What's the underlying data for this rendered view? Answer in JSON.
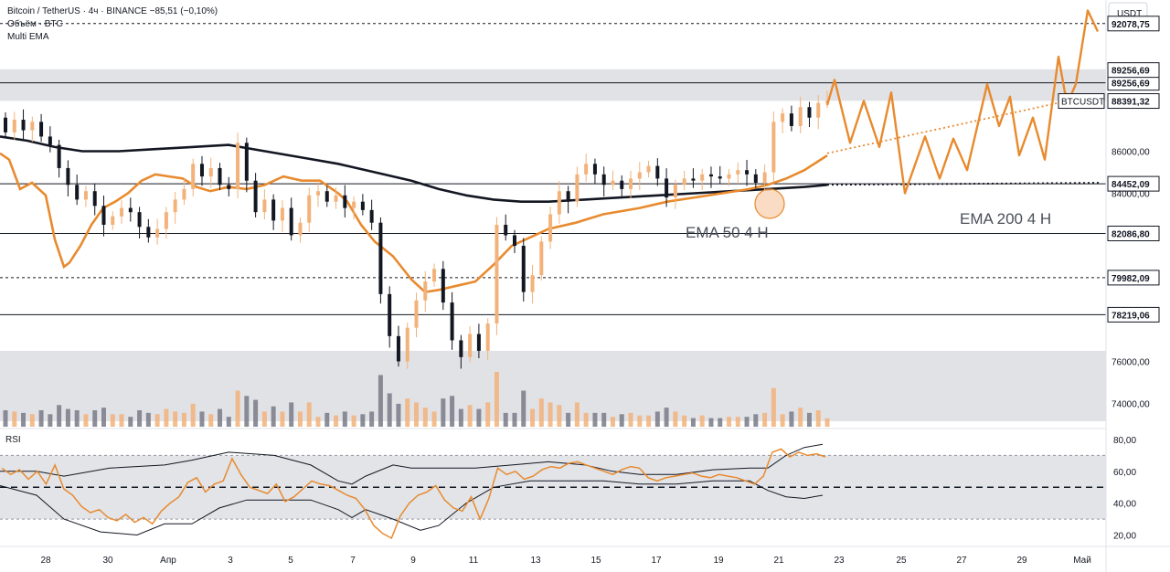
{
  "legend": {
    "line1": "Bitcoin / TetherUS · 4ч · BINANCE  −85,51 (−0,10%)",
    "line2": "Объём · BTC",
    "line3": "Multi EMA"
  },
  "price_axis_title": "USDT",
  "rsi_label": "RSI",
  "colors": {
    "up": "#f2b27a",
    "down": "#131722",
    "ema50": "#e88a2e",
    "ema200": "#131722",
    "forecast": "#e88a2e",
    "zone": "#d6d8de"
  },
  "chart_data": {
    "type": "candlestick",
    "x_ticks": [
      "28",
      "30",
      "Апр",
      "3",
      "5",
      "7",
      "9",
      "11",
      "13",
      "15",
      "17",
      "19",
      "21",
      "23",
      "25",
      "27",
      "29",
      "Май"
    ],
    "y_ticks": [
      "86000,00",
      "84000,00",
      "76000,00",
      "74000,00"
    ],
    "price_range": [
      72800,
      93200
    ],
    "levels": [
      {
        "price": 89256.69,
        "label": "89256,69",
        "style": "solid"
      },
      {
        "price": 84452.09,
        "label": "84452,09",
        "style": "solid"
      },
      {
        "price": 82086.8,
        "label": "82086,80",
        "style": "solid"
      },
      {
        "price": 79982.09,
        "label": "79982,09",
        "style": "dashed"
      },
      {
        "price": 78219.06,
        "label": "78219,06",
        "style": "solid"
      },
      {
        "price": 92078.75,
        "label": "92078,75",
        "style": "dashed"
      }
    ],
    "zones": [
      [
        88400,
        89900
      ],
      [
        73150,
        76500
      ]
    ],
    "current_price": {
      "label": "BTCUSDT",
      "value": "88391,32",
      "price": 88391.32
    },
    "ema200_label": "EMA 200 4 H",
    "ema50_label": "EMA 50 4 H",
    "candles": [
      {
        "o": 87600,
        "c": 86900
      },
      {
        "o": 86900,
        "c": 87500
      },
      {
        "o": 87500,
        "c": 87000
      },
      {
        "o": 87000,
        "c": 87400
      },
      {
        "o": 87400,
        "c": 86700
      },
      {
        "o": 86700,
        "c": 86300
      },
      {
        "o": 86300,
        "c": 85200
      },
      {
        "o": 85200,
        "c": 84400
      },
      {
        "o": 84400,
        "c": 83700
      },
      {
        "o": 83700,
        "c": 84100
      },
      {
        "o": 84100,
        "c": 83400
      },
      {
        "o": 83400,
        "c": 82500
      },
      {
        "o": 82500,
        "c": 82900
      },
      {
        "o": 82900,
        "c": 83300
      },
      {
        "o": 83300,
        "c": 83100
      },
      {
        "o": 83100,
        "c": 82400
      },
      {
        "o": 82400,
        "c": 81900
      },
      {
        "o": 81900,
        "c": 82300
      },
      {
        "o": 82300,
        "c": 83100
      },
      {
        "o": 83100,
        "c": 83700
      },
      {
        "o": 83700,
        "c": 84200
      },
      {
        "o": 84200,
        "c": 85400
      },
      {
        "o": 85400,
        "c": 84800
      },
      {
        "o": 84800,
        "c": 85200
      },
      {
        "o": 85200,
        "c": 84400
      },
      {
        "o": 84400,
        "c": 84200
      },
      {
        "o": 84200,
        "c": 86400
      },
      {
        "o": 86400,
        "c": 84600
      },
      {
        "o": 84600,
        "c": 83100
      },
      {
        "o": 83100,
        "c": 83700
      },
      {
        "o": 83700,
        "c": 82700
      },
      {
        "o": 82700,
        "c": 83300
      },
      {
        "o": 83300,
        "c": 82000
      },
      {
        "o": 82000,
        "c": 82600
      },
      {
        "o": 82600,
        "c": 83900
      },
      {
        "o": 83900,
        "c": 84100
      },
      {
        "o": 84100,
        "c": 83600
      },
      {
        "o": 83600,
        "c": 83900
      },
      {
        "o": 83900,
        "c": 83300
      },
      {
        "o": 83300,
        "c": 83600
      },
      {
        "o": 83600,
        "c": 83200
      },
      {
        "o": 83200,
        "c": 82600
      },
      {
        "o": 82600,
        "c": 79200
      },
      {
        "o": 79200,
        "c": 77200
      },
      {
        "o": 77200,
        "c": 76000
      },
      {
        "o": 76000,
        "c": 77600
      },
      {
        "o": 77600,
        "c": 78900
      },
      {
        "o": 78900,
        "c": 79800
      },
      {
        "o": 79800,
        "c": 80400
      },
      {
        "o": 80400,
        "c": 78800
      },
      {
        "o": 78800,
        "c": 77000
      },
      {
        "o": 77000,
        "c": 76200
      },
      {
        "o": 76200,
        "c": 77300
      },
      {
        "o": 77300,
        "c": 76500
      },
      {
        "o": 76500,
        "c": 77800
      },
      {
        "o": 77800,
        "c": 82500
      },
      {
        "o": 82500,
        "c": 82000
      },
      {
        "o": 82000,
        "c": 81500
      },
      {
        "o": 81500,
        "c": 79300
      },
      {
        "o": 79300,
        "c": 80100
      },
      {
        "o": 80100,
        "c": 81700
      },
      {
        "o": 81700,
        "c": 83000
      },
      {
        "o": 83000,
        "c": 84100
      },
      {
        "o": 84100,
        "c": 83600
      },
      {
        "o": 83600,
        "c": 84900
      },
      {
        "o": 84900,
        "c": 85400
      },
      {
        "o": 85400,
        "c": 84900
      },
      {
        "o": 84900,
        "c": 84400
      },
      {
        "o": 84400,
        "c": 84600
      },
      {
        "o": 84600,
        "c": 84200
      },
      {
        "o": 84200,
        "c": 84700
      },
      {
        "o": 84700,
        "c": 85000
      },
      {
        "o": 85000,
        "c": 85300
      },
      {
        "o": 85300,
        "c": 84700
      },
      {
        "o": 84700,
        "c": 83800
      },
      {
        "o": 83800,
        "c": 84400
      },
      {
        "o": 84400,
        "c": 84700
      },
      {
        "o": 84700,
        "c": 84600
      },
      {
        "o": 84600,
        "c": 84900
      },
      {
        "o": 84900,
        "c": 84800
      },
      {
        "o": 84800,
        "c": 84700
      },
      {
        "o": 84700,
        "c": 84900
      },
      {
        "o": 84900,
        "c": 85100
      },
      {
        "o": 85100,
        "c": 84900
      },
      {
        "o": 84900,
        "c": 84500
      },
      {
        "o": 84500,
        "c": 85000
      },
      {
        "o": 85000,
        "c": 87400
      },
      {
        "o": 87400,
        "c": 87800
      },
      {
        "o": 87800,
        "c": 87200
      },
      {
        "o": 87200,
        "c": 88100
      },
      {
        "o": 88100,
        "c": 87600
      },
      {
        "o": 87600,
        "c": 88300
      },
      {
        "o": 88300,
        "c": 88391
      }
    ],
    "ema50": [
      [
        0,
        85900
      ],
      [
        10,
        85600
      ],
      [
        22,
        84200
      ],
      [
        35,
        84500
      ],
      [
        50,
        83900
      ],
      [
        60,
        81800
      ],
      [
        70,
        80500
      ],
      [
        76,
        80700
      ],
      [
        88,
        81500
      ],
      [
        100,
        82500
      ],
      [
        113,
        83300
      ],
      [
        126,
        83600
      ],
      [
        140,
        84000
      ],
      [
        155,
        84600
      ],
      [
        170,
        84900
      ],
      [
        185,
        84800
      ],
      [
        200,
        84700
      ],
      [
        215,
        84300
      ],
      [
        230,
        84100
      ],
      [
        250,
        84300
      ],
      [
        270,
        84200
      ],
      [
        290,
        84400
      ],
      [
        310,
        84800
      ],
      [
        330,
        84600
      ],
      [
        350,
        84600
      ],
      [
        370,
        84000
      ],
      [
        380,
        83600
      ],
      [
        395,
        82500
      ],
      [
        410,
        81700
      ],
      [
        430,
        81000
      ],
      [
        450,
        79900
      ],
      [
        465,
        79300
      ],
      [
        480,
        79400
      ],
      [
        500,
        79600
      ],
      [
        520,
        79800
      ],
      [
        540,
        80600
      ],
      [
        560,
        81500
      ],
      [
        580,
        81900
      ],
      [
        600,
        82300
      ],
      [
        630,
        82600
      ],
      [
        660,
        83000
      ],
      [
        700,
        83300
      ],
      [
        730,
        83600
      ],
      [
        760,
        83800
      ],
      [
        790,
        84000
      ],
      [
        820,
        84200
      ],
      [
        840,
        84400
      ],
      [
        860,
        84700
      ],
      [
        880,
        85100
      ],
      [
        905,
        85800
      ]
    ],
    "ema200": [
      [
        0,
        86700
      ],
      [
        30,
        86500
      ],
      [
        60,
        86200
      ],
      [
        90,
        86000
      ],
      [
        130,
        86000
      ],
      [
        170,
        86100
      ],
      [
        210,
        86200
      ],
      [
        250,
        86300
      ],
      [
        290,
        86000
      ],
      [
        330,
        85700
      ],
      [
        370,
        85400
      ],
      [
        410,
        85000
      ],
      [
        450,
        84600
      ],
      [
        480,
        84200
      ],
      [
        510,
        83900
      ],
      [
        540,
        83700
      ],
      [
        570,
        83600
      ],
      [
        600,
        83600
      ],
      [
        640,
        83700
      ],
      [
        680,
        83800
      ],
      [
        720,
        83900
      ],
      [
        760,
        84000
      ],
      [
        800,
        84100
      ],
      [
        840,
        84200
      ],
      [
        880,
        84300
      ],
      [
        905,
        84400
      ]
    ],
    "forecast_path": [
      [
        905,
        88200
      ],
      [
        913,
        89400
      ],
      [
        930,
        86400
      ],
      [
        945,
        88400
      ],
      [
        962,
        86200
      ],
      [
        975,
        88800
      ],
      [
        990,
        84000
      ],
      [
        1012,
        86700
      ],
      [
        1028,
        84700
      ],
      [
        1043,
        86600
      ],
      [
        1058,
        85100
      ],
      [
        1080,
        89200
      ],
      [
        1093,
        87200
      ],
      [
        1105,
        88600
      ],
      [
        1115,
        85800
      ],
      [
        1130,
        87600
      ],
      [
        1143,
        85600
      ],
      [
        1158,
        90500
      ],
      [
        1165,
        88800
      ],
      [
        1170,
        88500
      ],
      [
        1177,
        89200
      ],
      [
        1190,
        92700
      ],
      [
        1201,
        91700
      ]
    ],
    "forecast_dotted": [
      [
        905,
        85900
      ],
      [
        1168,
        88400
      ]
    ],
    "ema200_dotted": [
      [
        905,
        84400
      ],
      [
        1205,
        84500
      ]
    ],
    "rsi": {
      "y_ticks": [
        "80,00",
        "60,00",
        "40,00",
        "20,00"
      ],
      "range": [
        14,
        84
      ],
      "upper_band": 70,
      "lower_band": 30,
      "mid": 50,
      "values": [
        62,
        58,
        61,
        55,
        60,
        52,
        64,
        49,
        45,
        38,
        34,
        36,
        31,
        29,
        33,
        28,
        31,
        27,
        35,
        40,
        44,
        53,
        56,
        47,
        52,
        54,
        68,
        58,
        50,
        48,
        46,
        52,
        41,
        44,
        49,
        54,
        52,
        51,
        48,
        45,
        43,
        36,
        26,
        21,
        18,
        32,
        40,
        45,
        47,
        51,
        42,
        37,
        35,
        44,
        30,
        43,
        62,
        58,
        60,
        55,
        57,
        61,
        63,
        62,
        65,
        66,
        64,
        62,
        60,
        58,
        61,
        63,
        62,
        56,
        54,
        56,
        57,
        58,
        59,
        57,
        56,
        58,
        57,
        56,
        54,
        52,
        57,
        72,
        74,
        69,
        72,
        70,
        71,
        69
      ],
      "bb_upper": [
        [
          0,
          60
        ],
        [
          40,
          60
        ],
        [
          70,
          57
        ],
        [
          120,
          62
        ],
        [
          180,
          64
        ],
        [
          210,
          67
        ],
        [
          250,
          72
        ],
        [
          300,
          70
        ],
        [
          340,
          64
        ],
        [
          370,
          54
        ],
        [
          385,
          52
        ],
        [
          400,
          57
        ],
        [
          430,
          64
        ],
        [
          450,
          62
        ],
        [
          480,
          62
        ],
        [
          520,
          62
        ],
        [
          560,
          64
        ],
        [
          600,
          66
        ],
        [
          640,
          64
        ],
        [
          670,
          60
        ],
        [
          700,
          58
        ],
        [
          740,
          58
        ],
        [
          780,
          61
        ],
        [
          820,
          62
        ],
        [
          840,
          62
        ],
        [
          860,
          70
        ],
        [
          880,
          75
        ],
        [
          900,
          77
        ]
      ],
      "bb_lower": [
        [
          0,
          51
        ],
        [
          40,
          45
        ],
        [
          70,
          30
        ],
        [
          110,
          22
        ],
        [
          150,
          20
        ],
        [
          180,
          27
        ],
        [
          210,
          27
        ],
        [
          240,
          37
        ],
        [
          270,
          42
        ],
        [
          300,
          42
        ],
        [
          340,
          42
        ],
        [
          370,
          36
        ],
        [
          385,
          31
        ],
        [
          400,
          36
        ],
        [
          430,
          30
        ],
        [
          460,
          23
        ],
        [
          480,
          26
        ],
        [
          510,
          40
        ],
        [
          540,
          50
        ],
        [
          580,
          54
        ],
        [
          620,
          54
        ],
        [
          660,
          54
        ],
        [
          700,
          52
        ],
        [
          740,
          52
        ],
        [
          780,
          54
        ],
        [
          820,
          54
        ],
        [
          840,
          48
        ],
        [
          860,
          44
        ],
        [
          880,
          43
        ],
        [
          900,
          45
        ]
      ]
    }
  }
}
